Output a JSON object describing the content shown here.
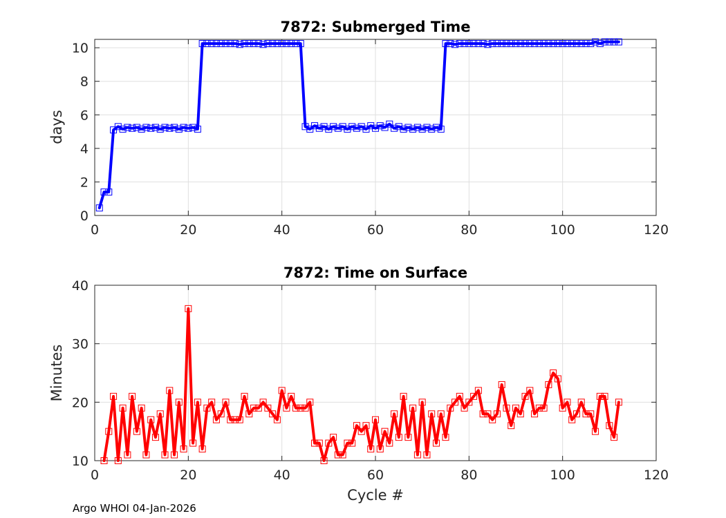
{
  "footer": "Argo WHOI 04-Jan-2026",
  "chart_data": [
    {
      "type": "line",
      "title": "7872: Submerged Time",
      "xlabel": "",
      "ylabel": "days",
      "xlim": [
        0,
        120
      ],
      "ylim": [
        0,
        10.5
      ],
      "xticks": [
        0,
        20,
        40,
        60,
        80,
        100,
        120
      ],
      "yticks": [
        0,
        2,
        4,
        6,
        8,
        10
      ],
      "color": "#0000ff",
      "marker": "square",
      "x": [
        1,
        2,
        3,
        4,
        5,
        6,
        7,
        8,
        9,
        10,
        11,
        12,
        13,
        14,
        15,
        16,
        17,
        18,
        19,
        20,
        21,
        22,
        23,
        24,
        25,
        26,
        27,
        28,
        29,
        30,
        31,
        32,
        33,
        34,
        35,
        36,
        37,
        38,
        39,
        40,
        41,
        42,
        43,
        44,
        45,
        46,
        47,
        48,
        49,
        50,
        51,
        52,
        53,
        54,
        55,
        56,
        57,
        58,
        59,
        60,
        61,
        62,
        63,
        64,
        65,
        66,
        67,
        68,
        69,
        70,
        71,
        72,
        73,
        74,
        75,
        76,
        77,
        78,
        79,
        80,
        81,
        82,
        83,
        84,
        85,
        86,
        87,
        88,
        89,
        90,
        91,
        92,
        93,
        94,
        95,
        96,
        97,
        98,
        99,
        100,
        101,
        102,
        103,
        104,
        105,
        106,
        107,
        108,
        109,
        110,
        111,
        112
      ],
      "values": [
        0.45,
        1.4,
        1.4,
        5.1,
        5.3,
        5.15,
        5.25,
        5.2,
        5.25,
        5.15,
        5.25,
        5.2,
        5.25,
        5.15,
        5.25,
        5.2,
        5.25,
        5.15,
        5.25,
        5.2,
        5.25,
        5.15,
        10.25,
        10.25,
        10.25,
        10.25,
        10.25,
        10.25,
        10.25,
        10.25,
        10.2,
        10.25,
        10.25,
        10.25,
        10.25,
        10.2,
        10.25,
        10.25,
        10.25,
        10.25,
        10.25,
        10.25,
        10.25,
        10.25,
        5.3,
        5.15,
        5.35,
        5.2,
        5.3,
        5.15,
        5.3,
        5.2,
        5.3,
        5.15,
        5.3,
        5.2,
        5.3,
        5.15,
        5.35,
        5.2,
        5.35,
        5.25,
        5.45,
        5.2,
        5.3,
        5.15,
        5.25,
        5.15,
        5.25,
        5.15,
        5.25,
        5.15,
        5.25,
        5.15,
        10.25,
        10.25,
        10.2,
        10.25,
        10.25,
        10.25,
        10.25,
        10.25,
        10.25,
        10.2,
        10.25,
        10.25,
        10.25,
        10.25,
        10.25,
        10.25,
        10.25,
        10.25,
        10.25,
        10.25,
        10.25,
        10.25,
        10.25,
        10.25,
        10.25,
        10.25,
        10.25,
        10.25,
        10.25,
        10.25,
        10.25,
        10.25,
        10.35,
        10.25,
        10.35,
        10.35,
        10.35,
        10.35
      ]
    },
    {
      "type": "line",
      "title": "7872: Time on Surface",
      "xlabel": "Cycle #",
      "ylabel": "Minutes",
      "xlim": [
        0,
        120
      ],
      "ylim": [
        10,
        40
      ],
      "xticks": [
        0,
        20,
        40,
        60,
        80,
        100,
        120
      ],
      "yticks": [
        10,
        20,
        30,
        40
      ],
      "color": "#ff0000",
      "marker": "square",
      "x": [
        2,
        3,
        4,
        5,
        6,
        7,
        8,
        9,
        10,
        11,
        12,
        13,
        14,
        15,
        16,
        17,
        18,
        19,
        20,
        21,
        22,
        23,
        24,
        25,
        26,
        27,
        28,
        29,
        30,
        31,
        32,
        33,
        34,
        35,
        36,
        37,
        38,
        39,
        40,
        41,
        42,
        43,
        44,
        45,
        46,
        47,
        48,
        49,
        50,
        51,
        52,
        53,
        54,
        55,
        56,
        57,
        58,
        59,
        60,
        61,
        62,
        63,
        64,
        65,
        66,
        67,
        68,
        69,
        70,
        71,
        72,
        73,
        74,
        75,
        76,
        77,
        78,
        79,
        80,
        81,
        82,
        83,
        84,
        85,
        86,
        87,
        88,
        89,
        90,
        91,
        92,
        93,
        94,
        95,
        96,
        97,
        98,
        99,
        100,
        101,
        102,
        103,
        104,
        105,
        106,
        107,
        108,
        109,
        110,
        111,
        112
      ],
      "values": [
        10,
        15,
        21,
        10,
        19,
        11,
        21,
        15,
        19,
        11,
        17,
        14,
        18,
        11,
        22,
        11,
        20,
        12,
        36,
        13,
        20,
        12,
        19,
        20,
        17,
        18,
        20,
        17,
        17,
        17,
        21,
        18,
        19,
        19,
        20,
        19,
        18,
        17,
        22,
        19,
        21,
        19,
        19,
        19,
        20,
        13,
        13,
        10,
        13,
        14,
        11,
        11,
        13,
        13,
        16,
        15,
        16,
        12,
        17,
        12,
        15,
        13,
        18,
        14,
        21,
        14,
        19,
        11,
        20,
        11,
        18,
        13,
        18,
        14,
        19,
        20,
        21,
        19,
        20,
        21,
        22,
        18,
        18,
        17,
        18,
        23,
        19,
        16,
        19,
        18,
        21,
        22,
        18,
        19,
        19,
        23,
        25,
        24,
        19,
        20,
        17,
        18,
        20,
        18,
        18,
        15,
        21,
        21,
        16,
        14,
        20
      ]
    }
  ]
}
